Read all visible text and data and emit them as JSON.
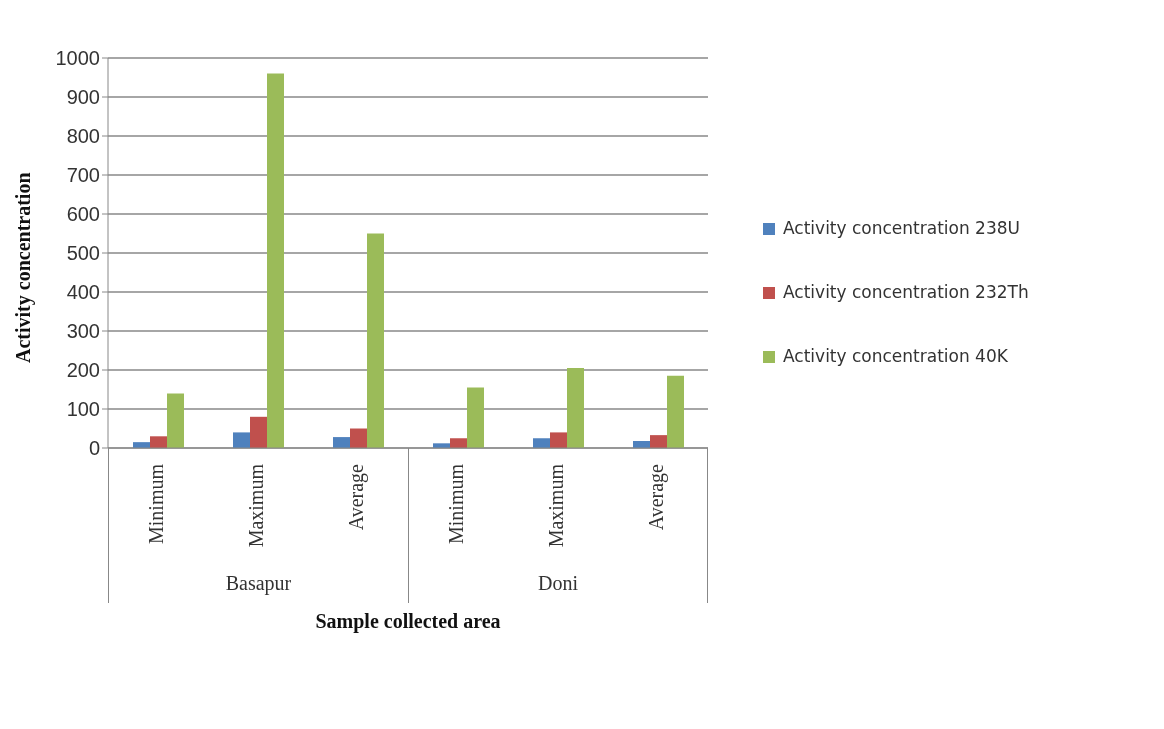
{
  "chart_data": {
    "type": "bar",
    "xlabel": "Sample collected area",
    "ylabel": "Activity  concentration",
    "categories": [
      "Minimum",
      "Maximum",
      "Average",
      "Minimum",
      "Maximum",
      "Average"
    ],
    "series": [
      {
        "name": "Activity concentration 238U",
        "color": "#4f81bd",
        "values": [
          15,
          40,
          28,
          12,
          25,
          18
        ]
      },
      {
        "name": "Activity concentration 232Th",
        "color": "#c0504d",
        "values": [
          30,
          80,
          50,
          25,
          40,
          33
        ]
      },
      {
        "name": "Activity concentration 40K",
        "color": "#9bbb59",
        "values": [
          140,
          960,
          550,
          155,
          205,
          185
        ]
      }
    ],
    "annotations": [
      "Basapur",
      "Doni"
    ],
    "ylim": [
      0,
      1000
    ],
    "yticks": [
      0,
      100,
      200,
      300,
      400,
      500,
      600,
      700,
      800,
      900,
      1000
    ],
    "grid": "y",
    "legend": "right"
  }
}
